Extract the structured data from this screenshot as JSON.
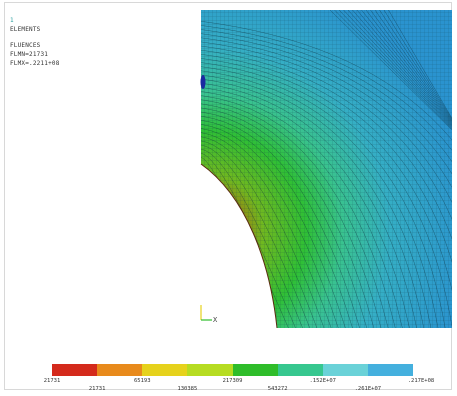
{
  "info": {
    "marker": "1",
    "title": "ELEMENTS",
    "subtitle": "FLUENCES",
    "fmin": "FLMN=21731",
    "fmax": "FLMX=.2211+08"
  },
  "legend": {
    "colors": [
      "#d42a1c",
      "#e88a1c",
      "#e6d21c",
      "#b6dc22",
      "#2fbd2a",
      "#36c78f",
      "#6ad2d8",
      "#44b0de"
    ],
    "ticks_top": [
      "21731",
      "65193",
      "217309",
      ".152E+07",
      ".217E+08"
    ],
    "ticks_bottom": [
      "21731",
      "130385",
      "543272",
      ".261E+07"
    ]
  },
  "triad": {
    "axis_label": "X"
  }
}
